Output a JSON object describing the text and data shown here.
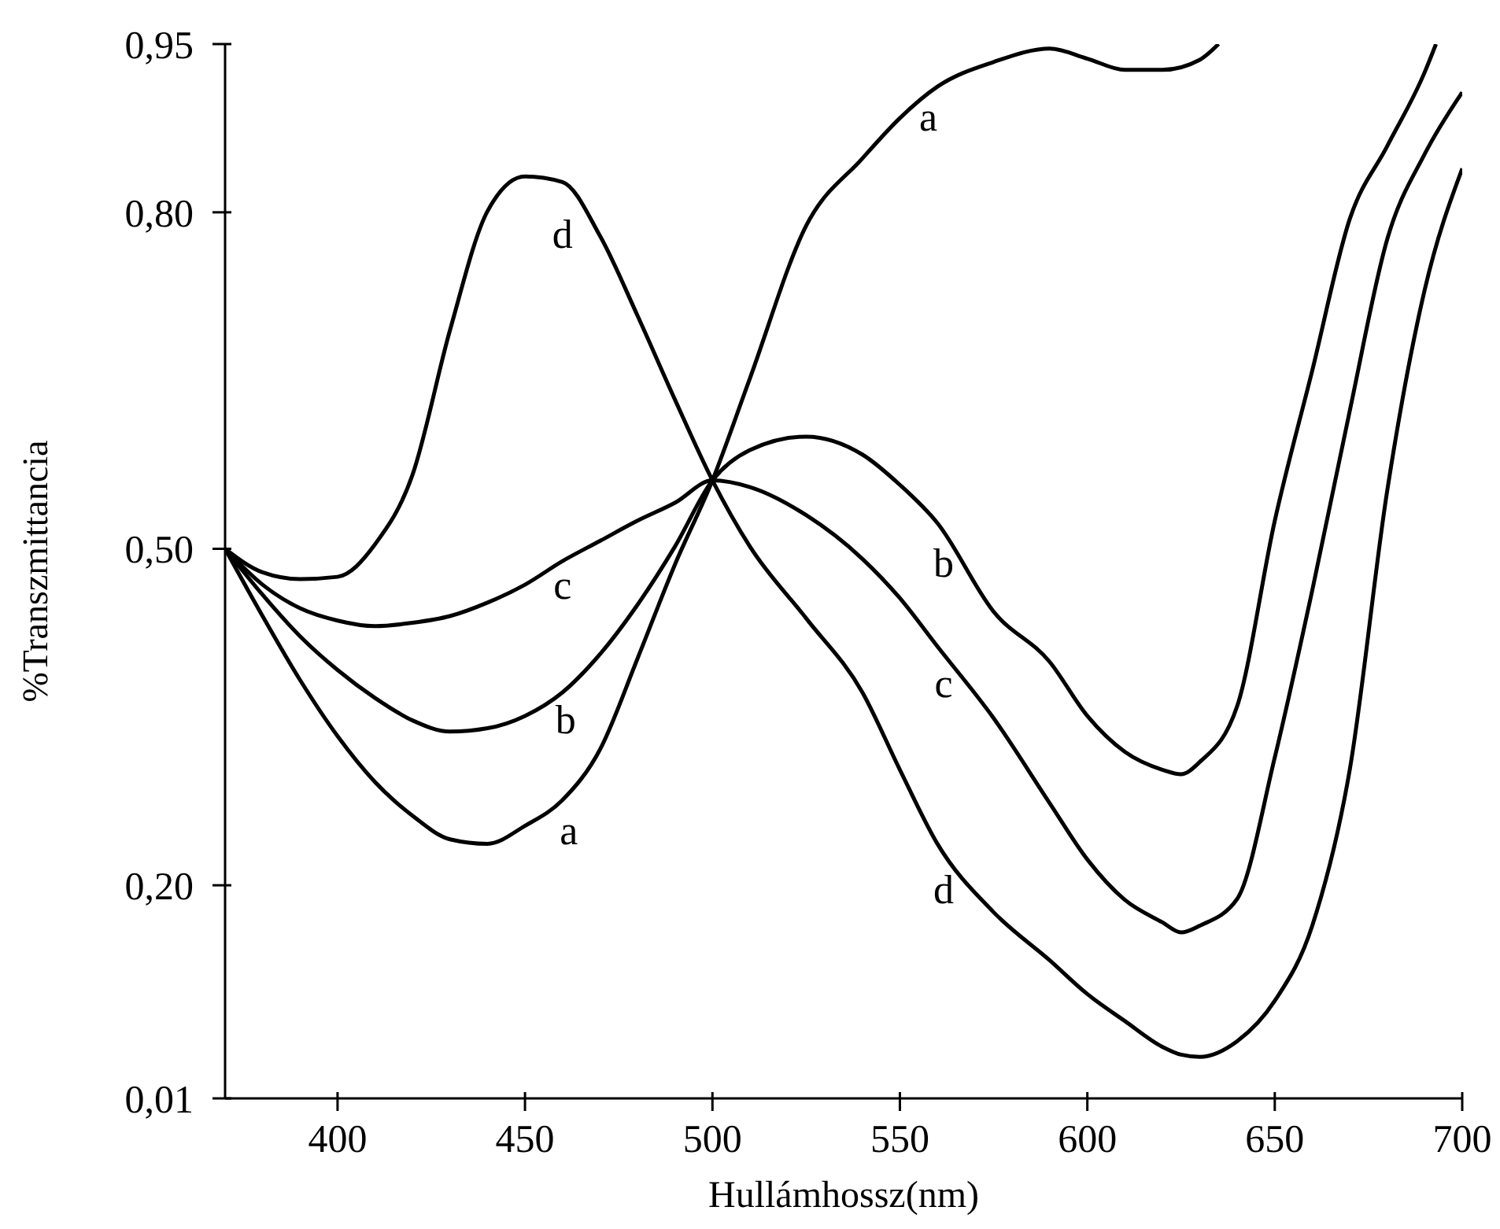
{
  "chart_data": {
    "type": "line",
    "xlabel": "Hullámhossz(nm)",
    "ylabel": "%Transzmittancia",
    "xlim": [
      370,
      700
    ],
    "xticks": [
      400,
      450,
      500,
      550,
      600,
      650,
      700
    ],
    "ylim": [
      0.01,
      0.95
    ],
    "yticks": [
      {
        "value": 0.01,
        "label": "0,01"
      },
      {
        "value": 0.2,
        "label": "0,20"
      },
      {
        "value": 0.5,
        "label": "0,50"
      },
      {
        "value": 0.8,
        "label": "0,80"
      },
      {
        "value": 0.95,
        "label": "0,95"
      }
    ],
    "marker": "none",
    "line_style": "solid",
    "series": [
      {
        "name": "a",
        "color": "#000000",
        "x": [
          370,
          380,
          390,
          400,
          410,
          420,
          430,
          440,
          450,
          460,
          470,
          480,
          490,
          500,
          510,
          525,
          540,
          550,
          560,
          575,
          590,
          600,
          610,
          620,
          630,
          635
        ],
        "values": [
          0.5,
          0.44,
          0.383,
          0.333,
          0.292,
          0.262,
          0.241,
          0.237,
          0.253,
          0.276,
          0.321,
          0.402,
          0.486,
          0.561,
          0.652,
          0.788,
          0.848,
          0.884,
          0.912,
          0.934,
          0.946,
          0.937,
          0.927,
          0.927,
          0.936,
          0.95
        ]
      },
      {
        "name": "b",
        "color": "#000000",
        "x": [
          370,
          380,
          390,
          400,
          410,
          420,
          430,
          440,
          450,
          460,
          470,
          480,
          490,
          500,
          510,
          525,
          540,
          550,
          560,
          575,
          590,
          600,
          610,
          620,
          625,
          630,
          640,
          650,
          660,
          670,
          680,
          690,
          693
        ],
        "values": [
          0.5,
          0.459,
          0.422,
          0.392,
          0.367,
          0.347,
          0.337,
          0.34,
          0.351,
          0.372,
          0.406,
          0.45,
          0.502,
          0.561,
          0.588,
          0.6,
          0.584,
          0.557,
          0.523,
          0.444,
          0.399,
          0.351,
          0.319,
          0.303,
          0.299,
          0.31,
          0.36,
          0.525,
          0.659,
          0.794,
          0.859,
          0.925,
          0.95
        ]
      },
      {
        "name": "c",
        "color": "#000000",
        "x": [
          370,
          380,
          390,
          400,
          410,
          420,
          430,
          440,
          450,
          460,
          470,
          480,
          490,
          500,
          510,
          525,
          540,
          550,
          560,
          575,
          590,
          600,
          610,
          620,
          625,
          630,
          640,
          650,
          660,
          670,
          680,
          690,
          700
        ],
        "values": [
          0.5,
          0.468,
          0.447,
          0.436,
          0.431,
          0.434,
          0.44,
          0.452,
          0.468,
          0.489,
          0.507,
          0.525,
          0.541,
          0.561,
          0.555,
          0.53,
          0.491,
          0.456,
          0.413,
          0.349,
          0.273,
          0.223,
          0.187,
          0.167,
          0.158,
          0.164,
          0.188,
          0.314,
          0.463,
          0.623,
          0.776,
          0.852,
          0.907
        ]
      },
      {
        "name": "d",
        "color": "#000000",
        "x": [
          370,
          380,
          390,
          400,
          410,
          420,
          430,
          440,
          450,
          460,
          470,
          480,
          490,
          500,
          510,
          525,
          540,
          550,
          560,
          575,
          590,
          600,
          610,
          620,
          625,
          630,
          640,
          650,
          660,
          670,
          680,
          690,
          700
        ],
        "values": [
          0.5,
          0.479,
          0.473,
          0.475,
          0.504,
          0.566,
          0.695,
          0.801,
          0.832,
          0.827,
          0.779,
          0.708,
          0.633,
          0.561,
          0.502,
          0.438,
          0.372,
          0.303,
          0.237,
          0.176,
          0.133,
          0.103,
          0.079,
          0.056,
          0.049,
          0.047,
          0.061,
          0.097,
          0.164,
          0.303,
          0.552,
          0.731,
          0.839
        ]
      }
    ]
  }
}
